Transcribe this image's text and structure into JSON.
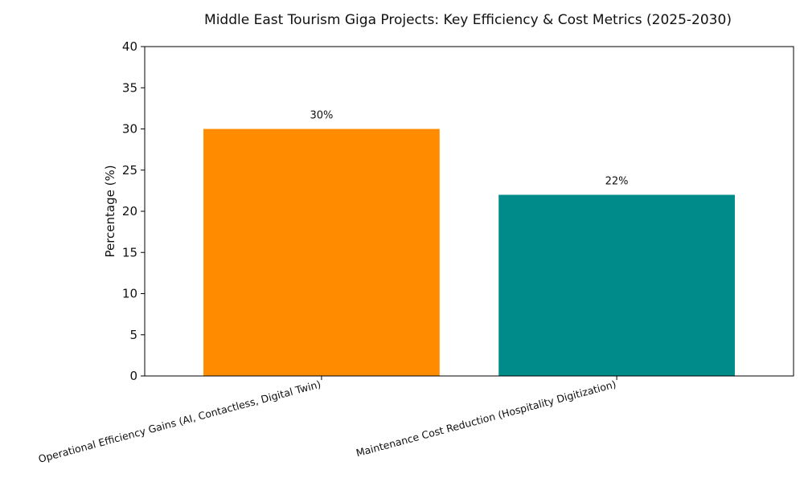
{
  "chart_data": {
    "type": "bar",
    "title": "Middle East Tourism Giga Projects: Key Efficiency & Cost Metrics (2025-2030)",
    "xlabel": "",
    "ylabel": "Percentage (%)",
    "ylim": [
      0,
      40
    ],
    "yticks": [
      0,
      5,
      10,
      15,
      20,
      25,
      30,
      35,
      40
    ],
    "grid": false,
    "categories": [
      "Operational Efficiency Gains (AI, Contactless, Digital Twin)",
      "Maintenance Cost Reduction (Hospitality Digitization)"
    ],
    "values": [
      30,
      22
    ],
    "data_labels": [
      "30%",
      "22%"
    ],
    "colors": [
      "#ff8c00",
      "#008b8b"
    ]
  }
}
